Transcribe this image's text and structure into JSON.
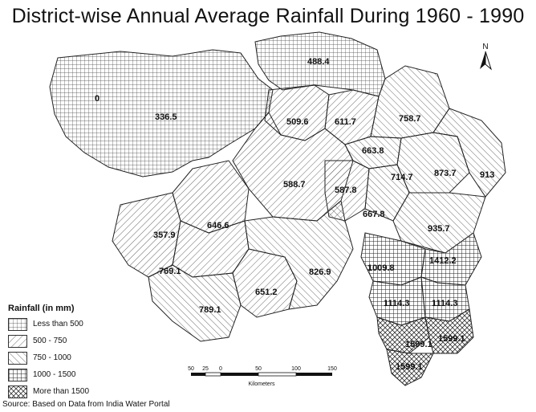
{
  "title": "District-wise Annual Average Rainfall During 1960 - 1990",
  "north_label": "N",
  "north_icon": "north-arrow-icon",
  "legend": {
    "title": "Rainfall (in mm)",
    "items": [
      {
        "label": "Less than 500",
        "pattern": "cross"
      },
      {
        "label": "500 - 750",
        "pattern": "diag-fine"
      },
      {
        "label": "750 - 1000",
        "pattern": "diag-wide"
      },
      {
        "label": "1000 - 1500",
        "pattern": "grid"
      },
      {
        "label": "More than 1500",
        "pattern": "diag-cross"
      }
    ]
  },
  "district_values": [
    "488.4",
    "0",
    "336.5",
    "509.6",
    "611.7",
    "758.7",
    "663.8",
    "714.7",
    "873.7",
    "913",
    "588.7",
    "587.8",
    "667.8",
    "935.7",
    "357.9",
    "646.6",
    "1009.8",
    "1412.2",
    "769.1",
    "826.9",
    "651.2",
    "789.1",
    "1114.3",
    "1114.3",
    "1599.1",
    "1599.1",
    "1599.1"
  ],
  "scale": {
    "ticks": [
      "50",
      "25",
      "0",
      "50",
      "100",
      "150"
    ],
    "unit": "Kilometers"
  },
  "source": "Source: Based on Data from India Water Portal",
  "colors": {
    "stroke": "#222222",
    "background": "#ffffff"
  }
}
